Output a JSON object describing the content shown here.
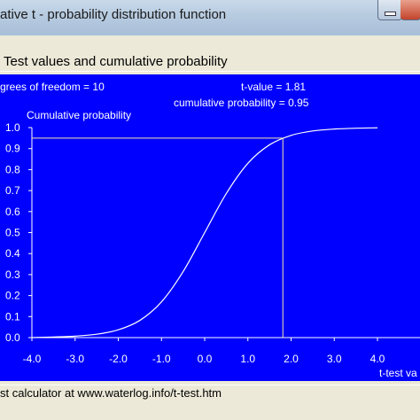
{
  "window": {
    "title": "ative t - probability distribution function"
  },
  "section_title": "Test values and  cumulative probability",
  "info": {
    "dof": "grees of freedom = 10",
    "t_value": "t-value = 1.81",
    "cum_prob": "cumulative probability  =  0.95"
  },
  "status_text": "st calculator at www.waterlog.info/t-test.htm",
  "colors": {
    "background": "#0000ff",
    "curve": "#ffffff",
    "marker": "#f2e6a6"
  },
  "chart_data": {
    "type": "line",
    "ylabel": "Cumulative probability",
    "xlabel": "t-test va",
    "xlim": [
      -4.0,
      4.0
    ],
    "ylim": [
      0.0,
      1.0
    ],
    "x_ticks": [
      "-4.0",
      "-3.0",
      "-2.0",
      "-1.0",
      "0.0",
      "1.0",
      "2.0",
      "3.0",
      "4.0"
    ],
    "y_ticks": [
      "0.0",
      "0.1",
      "0.2",
      "0.3",
      "0.4",
      "0.5",
      "0.6",
      "0.7",
      "0.8",
      "0.9",
      "1.0"
    ],
    "series": [
      {
        "x": [
          -4.0,
          -3.5,
          -3.0,
          -2.5,
          -2.0,
          -1.5,
          -1.0,
          -0.5,
          0.0,
          0.5,
          1.0,
          1.5,
          2.0,
          2.5,
          3.0,
          3.5,
          4.0
        ],
        "y": [
          0.0,
          0.003,
          0.007,
          0.016,
          0.037,
          0.082,
          0.17,
          0.314,
          0.5,
          0.686,
          0.83,
          0.918,
          0.963,
          0.984,
          0.993,
          0.997,
          0.999
        ]
      }
    ],
    "marker": {
      "x": 1.81,
      "y": 0.95
    }
  }
}
